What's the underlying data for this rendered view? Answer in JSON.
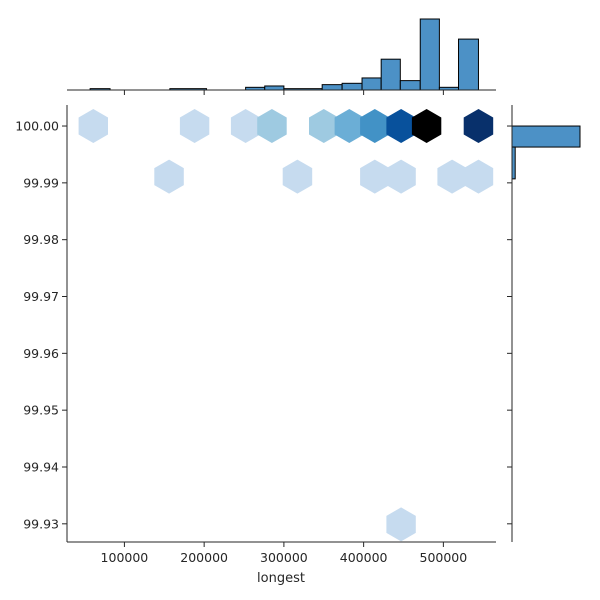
{
  "chart_data": {
    "type": "hexbin-jointplot",
    "xlabel": "longest",
    "ylabel": "",
    "xlim": [
      28000,
      566000
    ],
    "ylim": [
      99.9268,
      100.0037
    ],
    "x_ticks": [
      {
        "value": 100000,
        "label": "100000"
      },
      {
        "value": 200000,
        "label": "200000"
      },
      {
        "value": 300000,
        "label": "300000"
      },
      {
        "value": 400000,
        "label": "400000"
      },
      {
        "value": 500000,
        "label": "500000"
      }
    ],
    "y_ticks": [
      {
        "value": 100.0,
        "label": "100.00"
      },
      {
        "value": 99.99,
        "label": "99.99"
      },
      {
        "value": 99.98,
        "label": "99.98"
      },
      {
        "value": 99.97,
        "label": "99.97"
      },
      {
        "value": 99.96,
        "label": "99.96"
      },
      {
        "value": 99.95,
        "label": "99.95"
      },
      {
        "value": 99.94,
        "label": "99.94"
      },
      {
        "value": 99.93,
        "label": "99.93"
      }
    ],
    "colormap": [
      "#f7fbff",
      "#deebf7",
      "#c6dbef",
      "#9ecae1",
      "#6baed6",
      "#4292c6",
      "#2171b5",
      "#08519c",
      "#08306b",
      "#000000"
    ],
    "hexbin": [
      {
        "x": 61000,
        "y": 100.0,
        "count": 1
      },
      {
        "x": 188000,
        "y": 100.0,
        "count": 1
      },
      {
        "x": 252000,
        "y": 100.0,
        "count": 1
      },
      {
        "x": 285000,
        "y": 100.0,
        "count": 2
      },
      {
        "x": 350000,
        "y": 100.0,
        "count": 2
      },
      {
        "x": 382000,
        "y": 100.0,
        "count": 4
      },
      {
        "x": 414000,
        "y": 100.0,
        "count": 6
      },
      {
        "x": 447000,
        "y": 100.0,
        "count": 11
      },
      {
        "x": 479000,
        "y": 100.0,
        "count": 20
      },
      {
        "x": 544000,
        "y": 100.0,
        "count": 15
      },
      {
        "x": 156000,
        "y": 99.9911,
        "count": 1
      },
      {
        "x": 317000,
        "y": 99.9911,
        "count": 1
      },
      {
        "x": 414000,
        "y": 99.9911,
        "count": 1
      },
      {
        "x": 447000,
        "y": 99.9911,
        "count": 1
      },
      {
        "x": 511000,
        "y": 99.9911,
        "count": 1
      },
      {
        "x": 544000,
        "y": 99.9911,
        "count": 1
      },
      {
        "x": 447000,
        "y": 99.9299,
        "count": 1
      }
    ],
    "hexbin_max": 20,
    "x_marginal": {
      "bar_color": "#4c91c6",
      "bins": [
        {
          "x0": 57000,
          "x1": 82000,
          "count": 1
        },
        {
          "x0": 157000,
          "x1": 203000,
          "count": 1
        },
        {
          "x0": 252000,
          "x1": 276000,
          "count": 2
        },
        {
          "x0": 276000,
          "x1": 300000,
          "count": 3
        },
        {
          "x0": 300000,
          "x1": 348000,
          "count": 1
        },
        {
          "x0": 348000,
          "x1": 373000,
          "count": 4
        },
        {
          "x0": 373000,
          "x1": 398000,
          "count": 5
        },
        {
          "x0": 398000,
          "x1": 422000,
          "count": 9
        },
        {
          "x0": 422000,
          "x1": 446000,
          "count": 23
        },
        {
          "x0": 446000,
          "x1": 471000,
          "count": 7
        },
        {
          "x0": 471000,
          "x1": 495000,
          "count": 53
        },
        {
          "x0": 495000,
          "x1": 519000,
          "count": 2
        },
        {
          "x0": 519000,
          "x1": 544000,
          "count": 38
        }
      ]
    },
    "y_marginal": {
      "bar_color": "#4c91c6",
      "bins": [
        {
          "y0": 99.9963,
          "y1": 100.0,
          "count": 85
        },
        {
          "y0": 99.9907,
          "y1": 99.9963,
          "count": 4
        }
      ]
    }
  }
}
